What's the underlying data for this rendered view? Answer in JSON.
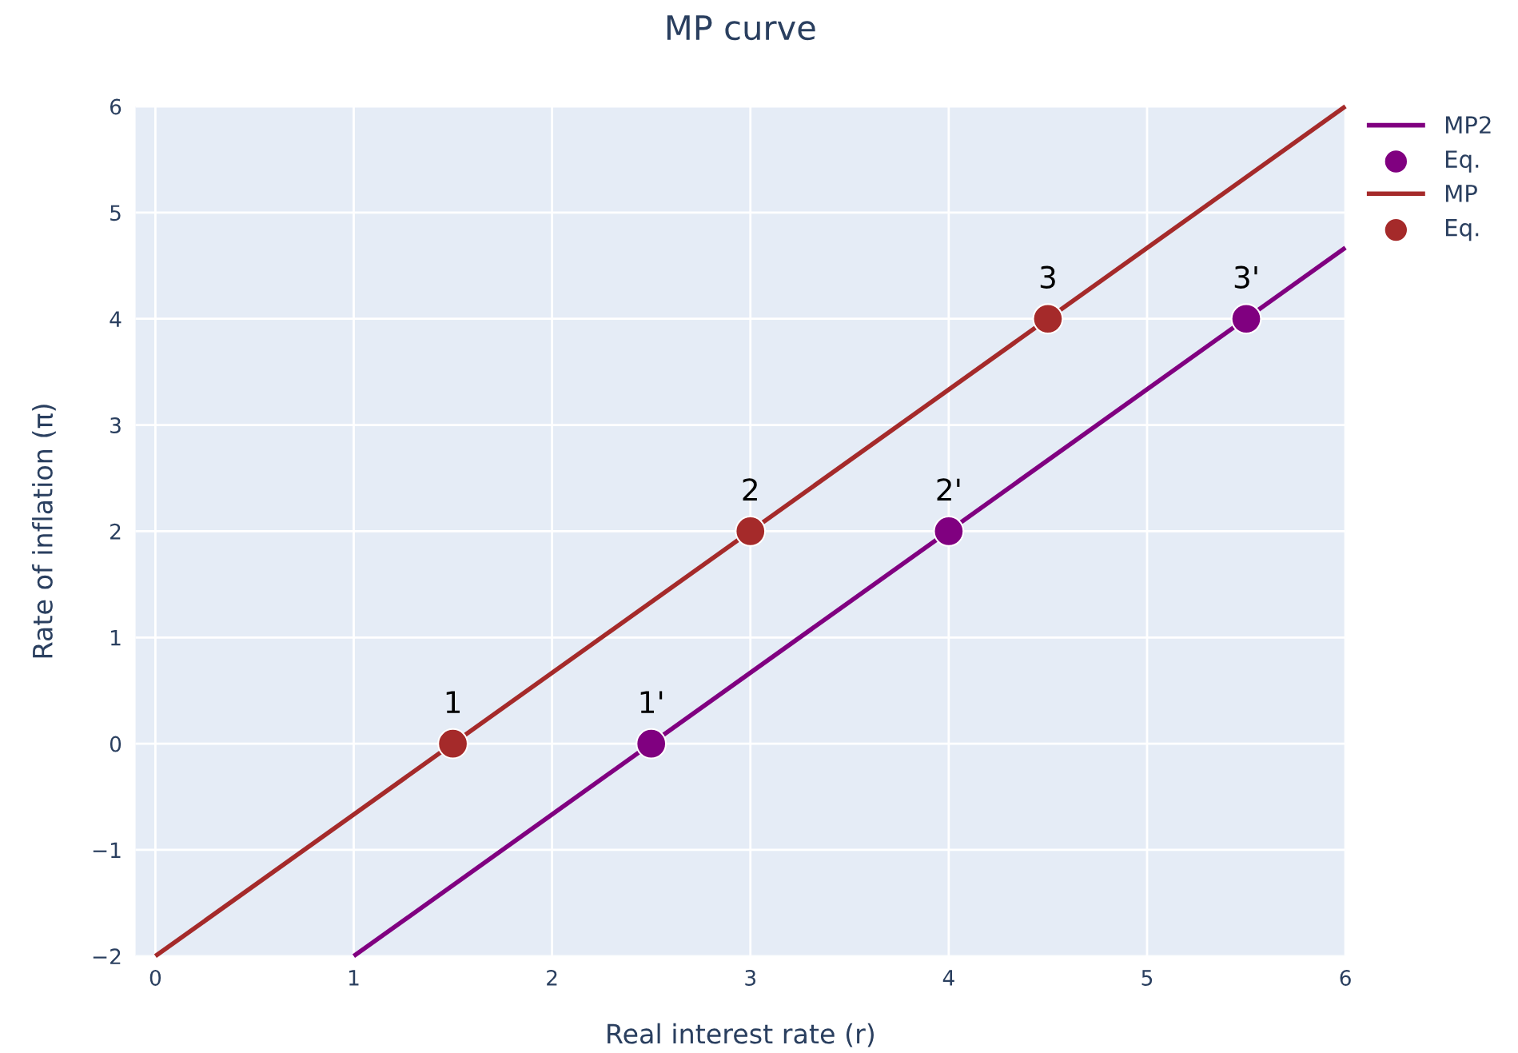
{
  "chart_data": {
    "type": "line",
    "title": "MP curve",
    "xlabel": "Real interest rate (r)",
    "ylabel": "Rate of inflation (π)",
    "xlim": [
      -0.1,
      6
    ],
    "ylim": [
      -2,
      6
    ],
    "xticks": [
      0,
      1,
      2,
      3,
      4,
      5,
      6
    ],
    "yticks": [
      {
        "value": -2,
        "label": "−2"
      },
      {
        "value": -1,
        "label": "−1"
      },
      0,
      1,
      2,
      3,
      4,
      5,
      6
    ],
    "grid": true,
    "legend": "top right",
    "annotations": [
      {
        "text": "1'",
        "x": 2.5,
        "y": 0
      },
      {
        "text": "2'",
        "x": 4,
        "y": 2
      },
      {
        "text": "3'",
        "x": 5.5,
        "y": 4
      },
      {
        "text": "1",
        "x": 1.5,
        "y": 0
      },
      {
        "text": "2",
        "x": 3,
        "y": 2
      },
      {
        "text": "3",
        "x": 4.5,
        "y": 4
      }
    ],
    "series": [
      {
        "name": "MP2",
        "color": "#800080",
        "x": [
          1,
          6
        ],
        "values": [
          -2,
          4.67
        ]
      },
      {
        "name": "Eq.",
        "type": "scatter",
        "marker": "circle",
        "color": "#800080",
        "x": [
          2.5,
          4,
          5.5
        ],
        "values": [
          0,
          2,
          4
        ]
      },
      {
        "name": "MP",
        "color": "#a52a2a",
        "x": [
          0,
          6
        ],
        "values": [
          -2,
          6
        ]
      },
      {
        "name": "Eq.",
        "type": "scatter",
        "marker": "circle",
        "color": "#a52a2a",
        "x": [
          1.5,
          3,
          4.5
        ],
        "values": [
          0,
          2,
          4
        ]
      }
    ]
  }
}
